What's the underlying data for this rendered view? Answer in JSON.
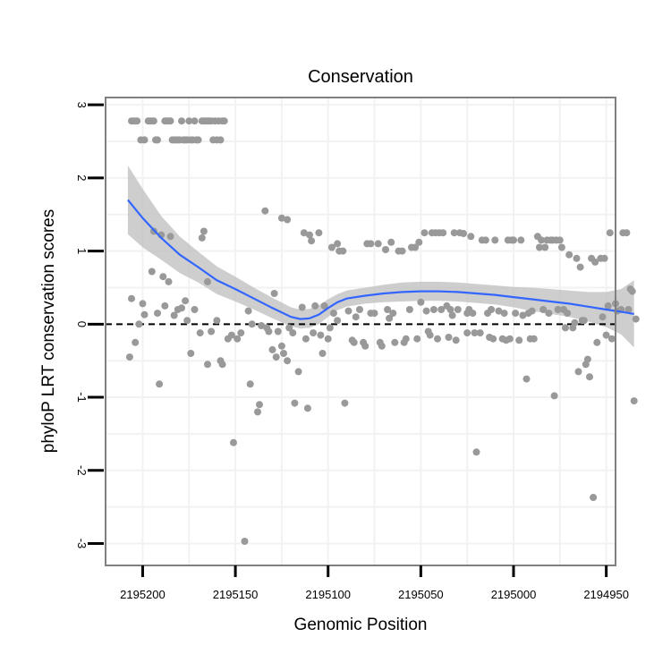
{
  "chart_data": {
    "type": "scatter",
    "title": "Conservation",
    "xlabel": "Genomic Position",
    "ylabel": "phyloP LRT conservation scores",
    "x_reversed": true,
    "xlim": [
      2194945,
      2195220
    ],
    "ylim": [
      -3.3,
      3.1
    ],
    "x_ticks": [
      2195200,
      2195150,
      2195100,
      2195050,
      2195000,
      2194950
    ],
    "x_tick_labels": [
      "2195200",
      "2195150",
      "2195100",
      "2195050",
      "2195000",
      "2194950"
    ],
    "y_ticks": [
      -3,
      -2,
      -1,
      0,
      1,
      2,
      3
    ],
    "y_tick_labels": [
      "-3",
      "-2",
      "-1",
      "0",
      "1",
      "2",
      "3"
    ],
    "grid": true,
    "reference_line": {
      "y": 0,
      "style": "dashed",
      "color": "#000000"
    },
    "colors": {
      "points": "#999999",
      "smooth": "#3366ff",
      "band": "#bdbdbd",
      "panel_border": "#808080",
      "grid": "#f2f2f2"
    },
    "series": [
      {
        "name": "phyloP scores",
        "kind": "points",
        "points": [
          [
            2195207,
            -0.45
          ],
          [
            2195206,
            0.35
          ],
          [
            2195204,
            -0.25
          ],
          [
            2195202,
            0.0
          ],
          [
            2195200,
            0.28
          ],
          [
            2195199,
            0.13
          ],
          [
            2195195,
            0.72
          ],
          [
            2195194,
            1.27
          ],
          [
            2195192,
            0.15
          ],
          [
            2195191,
            -0.82
          ],
          [
            2195190,
            1.22
          ],
          [
            2195189,
            0.65
          ],
          [
            2195188,
            0.25
          ],
          [
            2195186,
            0.58
          ],
          [
            2195185,
            1.2
          ],
          [
            2195183,
            0.12
          ],
          [
            2195181,
            0.2
          ],
          [
            2195179,
            0.22
          ],
          [
            2195177,
            0.32
          ],
          [
            2195176,
            0.05
          ],
          [
            2195174,
            -0.4
          ],
          [
            2195172,
            0.2
          ],
          [
            2195169,
            -0.12
          ],
          [
            2195168,
            1.18
          ],
          [
            2195167,
            1.27
          ],
          [
            2195165,
            0.58
          ],
          [
            2195165,
            -0.55
          ],
          [
            2195163,
            -0.1
          ],
          [
            2195160,
            0.05
          ],
          [
            2195158,
            -0.5
          ],
          [
            2195157,
            -0.55
          ],
          [
            2195154,
            -0.2
          ],
          [
            2195152,
            -0.15
          ],
          [
            2195151,
            -1.62
          ],
          [
            2195149,
            -0.2
          ],
          [
            2195147,
            -0.12
          ],
          [
            2195145,
            -2.97
          ],
          [
            2195143,
            0.18
          ],
          [
            2195142,
            -0.82
          ],
          [
            2195141,
            0.0
          ],
          [
            2195138,
            -1.2
          ],
          [
            2195137,
            -1.1
          ],
          [
            2195136,
            -0.02
          ],
          [
            2195134,
            1.55
          ],
          [
            2195133,
            -0.05
          ],
          [
            2195132,
            -0.1
          ],
          [
            2195130,
            -0.35
          ],
          [
            2195129,
            0.42
          ],
          [
            2195128,
            -0.45
          ],
          [
            2195127,
            -0.1
          ],
          [
            2195125,
            1.45
          ],
          [
            2195125,
            -0.3
          ],
          [
            2195124,
            -0.4
          ],
          [
            2195122,
            -0.5
          ],
          [
            2195122,
            1.43
          ],
          [
            2195121,
            -0.05
          ],
          [
            2195119,
            -0.12
          ],
          [
            2195118,
            -1.08
          ],
          [
            2195116,
            -0.65
          ],
          [
            2195114,
            0.23
          ],
          [
            2195113,
            1.25
          ],
          [
            2195112,
            -0.2
          ],
          [
            2195111,
            -1.15
          ],
          [
            2195110,
            1.22
          ],
          [
            2195109,
            1.14
          ],
          [
            2195108,
            -0.12
          ],
          [
            2195107,
            0.25
          ],
          [
            2195105,
            1.25
          ],
          [
            2195104,
            -0.15
          ],
          [
            2195103,
            -0.4
          ],
          [
            2195102,
            0.25
          ],
          [
            2195100,
            -0.2
          ],
          [
            2195099,
            -0.05
          ],
          [
            2195098,
            1.05
          ],
          [
            2195097,
            0.15
          ],
          [
            2195095,
            1.1
          ],
          [
            2195095,
            0.05
          ],
          [
            2195094,
            1.0
          ],
          [
            2195092,
            1.0
          ],
          [
            2195091,
            -1.08
          ],
          [
            2195089,
            0.18
          ],
          [
            2195087,
            -0.22
          ],
          [
            2195086,
            -0.25
          ],
          [
            2195085,
            0.1
          ],
          [
            2195083,
            0.2
          ],
          [
            2195081,
            -0.25
          ],
          [
            2195080,
            -0.3
          ],
          [
            2195079,
            1.1
          ],
          [
            2195077,
            1.1
          ],
          [
            2195077,
            0.15
          ],
          [
            2195075,
            0.15
          ],
          [
            2195073,
            1.1
          ],
          [
            2195072,
            -0.25
          ],
          [
            2195071,
            -0.3
          ],
          [
            2195069,
            1.02
          ],
          [
            2195068,
            0.2
          ],
          [
            2195067,
            0.08
          ],
          [
            2195066,
            1.12
          ],
          [
            2195065,
            0.15
          ],
          [
            2195064,
            -0.25
          ],
          [
            2195062,
            1.0
          ],
          [
            2195060,
            1.0
          ],
          [
            2195059,
            -0.25
          ],
          [
            2195058,
            -0.2
          ],
          [
            2195056,
            0.2
          ],
          [
            2195055,
            1.05
          ],
          [
            2195053,
            1.05
          ],
          [
            2195052,
            -0.2
          ],
          [
            2195051,
            1.12
          ],
          [
            2195050,
            0.3
          ],
          [
            2195048,
            1.25
          ],
          [
            2195047,
            0.18
          ],
          [
            2195046,
            -0.1
          ],
          [
            2195045,
            -0.15
          ],
          [
            2195044,
            1.25
          ],
          [
            2195043,
            0.2
          ],
          [
            2195042,
            1.25
          ],
          [
            2195041,
            -0.2
          ],
          [
            2195040,
            1.25
          ],
          [
            2195039,
            0.2
          ],
          [
            2195038,
            1.25
          ],
          [
            2195036,
            0.25
          ],
          [
            2195035,
            -0.18
          ],
          [
            2195034,
            0.2
          ],
          [
            2195033,
            0.12
          ],
          [
            2195032,
            1.25
          ],
          [
            2195031,
            -0.22
          ],
          [
            2195030,
            0.2
          ],
          [
            2195029,
            1.25
          ],
          [
            2195027,
            1.24
          ],
          [
            2195025,
            0.15
          ],
          [
            2195025,
            -0.12
          ],
          [
            2195024,
            0.2
          ],
          [
            2195023,
            1.2
          ],
          [
            2195022,
            0.15
          ],
          [
            2195021,
            -0.12
          ],
          [
            2195020,
            -1.75
          ],
          [
            2195018,
            -0.12
          ],
          [
            2195017,
            1.15
          ],
          [
            2195015,
            1.15
          ],
          [
            2195014,
            0.15
          ],
          [
            2195013,
            -0.18
          ],
          [
            2195012,
            0.2
          ],
          [
            2195011,
            -0.2
          ],
          [
            2195010,
            1.15
          ],
          [
            2195008,
            0.18
          ],
          [
            2195006,
            -0.2
          ],
          [
            2195005,
            0.15
          ],
          [
            2195004,
            -0.22
          ],
          [
            2195003,
            1.15
          ],
          [
            2195002,
            -0.2
          ],
          [
            2195001,
            1.15
          ],
          [
            2195000,
            1.15
          ],
          [
            2194999,
            0.15
          ],
          [
            2194997,
            -0.22
          ],
          [
            2194996,
            1.15
          ],
          [
            2194995,
            0.12
          ],
          [
            2194993,
            -0.75
          ],
          [
            2194992,
            0.15
          ],
          [
            2194991,
            -0.2
          ],
          [
            2194990,
            0.18
          ],
          [
            2194989,
            -0.2
          ],
          [
            2194987,
            1.2
          ],
          [
            2194986,
            1.05
          ],
          [
            2194985,
            1.15
          ],
          [
            2194984,
            0.2
          ],
          [
            2194983,
            1.05
          ],
          [
            2194982,
            1.15
          ],
          [
            2194981,
            0.15
          ],
          [
            2194980,
            1.15
          ],
          [
            2194979,
            1.15
          ],
          [
            2194978,
            -0.98
          ],
          [
            2194977,
            1.15
          ],
          [
            2194976,
            0.2
          ],
          [
            2194975,
            1.15
          ],
          [
            2194974,
            1.05
          ],
          [
            2194973,
            0.2
          ],
          [
            2194972,
            -0.05
          ],
          [
            2194971,
            0.15
          ],
          [
            2194970,
            0.95
          ],
          [
            2194968,
            -0.05
          ],
          [
            2194967,
            0.02
          ],
          [
            2194966,
            0.9
          ],
          [
            2194965,
            -0.65
          ],
          [
            2194964,
            0.78
          ],
          [
            2194963,
            0.05
          ],
          [
            2194962,
            0.05
          ],
          [
            2194961,
            -0.55
          ],
          [
            2194960,
            -0.48
          ],
          [
            2194959,
            -0.72
          ],
          [
            2194958,
            0.9
          ],
          [
            2194957,
            -2.37
          ],
          [
            2194956,
            0.85
          ],
          [
            2194955,
            -0.25
          ],
          [
            2194953,
            0.9
          ],
          [
            2194952,
            0.1
          ],
          [
            2194951,
            0.9
          ],
          [
            2194950,
            -0.15
          ],
          [
            2194949,
            0.25
          ],
          [
            2194948,
            1.25
          ],
          [
            2194947,
            -0.2
          ],
          [
            2194945,
            0.28
          ],
          [
            2194944,
            0.18
          ],
          [
            2194942,
            0.2
          ],
          [
            2194941,
            1.25
          ],
          [
            2194939,
            1.25
          ],
          [
            2194938,
            0.2
          ],
          [
            2194937,
            0.48
          ],
          [
            2194936,
            0.45
          ],
          [
            2194935,
            -1.05
          ],
          [
            2194934,
            0.07
          ],
          [
            2195206,
            2.78
          ],
          [
            2195205,
            2.78
          ],
          [
            2195204,
            2.78
          ],
          [
            2195203,
            2.78
          ],
          [
            2195201,
            2.52
          ],
          [
            2195199,
            2.52
          ],
          [
            2195197,
            2.78
          ],
          [
            2195196,
            2.78
          ],
          [
            2195195,
            2.78
          ],
          [
            2195194,
            2.78
          ],
          [
            2195193,
            2.52
          ],
          [
            2195192,
            2.52
          ],
          [
            2195188,
            2.78
          ],
          [
            2195187,
            2.78
          ],
          [
            2195186,
            2.78
          ],
          [
            2195185,
            2.78
          ],
          [
            2195184,
            2.52
          ],
          [
            2195183,
            2.52
          ],
          [
            2195182,
            2.52
          ],
          [
            2195181,
            2.52
          ],
          [
            2195180,
            2.52
          ],
          [
            2195179,
            2.78
          ],
          [
            2195178,
            2.52
          ],
          [
            2195177,
            2.52
          ],
          [
            2195176,
            2.52
          ],
          [
            2195175,
            2.78
          ],
          [
            2195174,
            2.52
          ],
          [
            2195173,
            2.52
          ],
          [
            2195172,
            2.78
          ],
          [
            2195171,
            2.52
          ],
          [
            2195170,
            2.52
          ],
          [
            2195168,
            2.78
          ],
          [
            2195167,
            2.78
          ],
          [
            2195166,
            2.78
          ],
          [
            2195165,
            2.78
          ],
          [
            2195164,
            2.78
          ],
          [
            2195163,
            2.78
          ],
          [
            2195162,
            2.52
          ],
          [
            2195161,
            2.78
          ],
          [
            2195160,
            2.52
          ],
          [
            2195159,
            2.78
          ],
          [
            2195158,
            2.52
          ],
          [
            2195157,
            2.78
          ],
          [
            2195156,
            2.78
          ]
        ]
      },
      {
        "name": "smoothed fit",
        "kind": "line",
        "x": [
          2195208,
          2195200,
          2195190,
          2195180,
          2195170,
          2195160,
          2195150,
          2195140,
          2195130,
          2195120,
          2195115,
          2195110,
          2195105,
          2195100,
          2195095,
          2195090,
          2195080,
          2195070,
          2195060,
          2195050,
          2195040,
          2195030,
          2195020,
          2195010,
          2195000,
          2194990,
          2194980,
          2194970,
          2194960,
          2194950,
          2194942,
          2194935
        ],
        "y": [
          1.7,
          1.45,
          1.18,
          0.95,
          0.78,
          0.6,
          0.48,
          0.35,
          0.22,
          0.1,
          0.07,
          0.08,
          0.13,
          0.22,
          0.3,
          0.35,
          0.39,
          0.42,
          0.44,
          0.45,
          0.45,
          0.44,
          0.42,
          0.4,
          0.37,
          0.34,
          0.31,
          0.28,
          0.24,
          0.2,
          0.17,
          0.14
        ],
        "ci_upper": [
          2.17,
          1.85,
          1.48,
          1.2,
          0.99,
          0.79,
          0.65,
          0.5,
          0.36,
          0.23,
          0.2,
          0.21,
          0.26,
          0.34,
          0.41,
          0.46,
          0.5,
          0.54,
          0.57,
          0.58,
          0.58,
          0.57,
          0.55,
          0.53,
          0.51,
          0.5,
          0.48,
          0.46,
          0.44,
          0.44,
          0.48,
          0.6
        ],
        "ci_lower": [
          1.23,
          1.05,
          0.88,
          0.7,
          0.57,
          0.41,
          0.31,
          0.2,
          0.08,
          -0.03,
          -0.06,
          -0.05,
          0.0,
          0.1,
          0.19,
          0.24,
          0.28,
          0.3,
          0.31,
          0.32,
          0.32,
          0.31,
          0.29,
          0.27,
          0.23,
          0.18,
          0.14,
          0.1,
          0.04,
          -0.04,
          -0.14,
          -0.32
        ]
      }
    ]
  }
}
